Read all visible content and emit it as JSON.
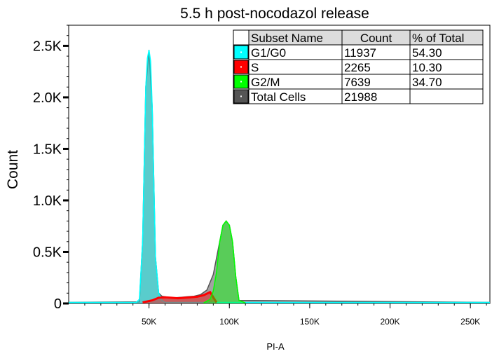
{
  "chart_data": {
    "type": "area",
    "title": "5.5 h post-nocodazol release",
    "xlabel": "PI-A",
    "ylabel": "Count",
    "xlim": [
      0,
      262144
    ],
    "ylim": [
      0,
      2700
    ],
    "x_ticks": [
      {
        "value": 50000,
        "label": "50K"
      },
      {
        "value": 100000,
        "label": "100K"
      },
      {
        "value": 150000,
        "label": "150K"
      },
      {
        "value": 200000,
        "label": "200K"
      },
      {
        "value": 250000,
        "label": "250K"
      }
    ],
    "y_ticks": [
      {
        "value": 0,
        "label": "0"
      },
      {
        "value": 500,
        "label": "0.5K"
      },
      {
        "value": 1000,
        "label": "1.0K"
      },
      {
        "value": 1500,
        "label": "1.5K"
      },
      {
        "value": 2000,
        "label": "2.0K"
      },
      {
        "value": 2500,
        "label": "2.5K"
      }
    ],
    "x_minor_step": 10000,
    "y_minor_step": 100,
    "grid": false,
    "series": [
      {
        "name": "Total Cells",
        "color": "#555555",
        "x": [
          0,
          44000,
          46000,
          48000,
          50000,
          52000,
          54000,
          56000,
          58000,
          62000,
          66000,
          70000,
          74000,
          78000,
          82000,
          86000,
          90000,
          94000,
          96000,
          98000,
          100000,
          102000,
          104000,
          106000,
          262144
        ],
        "y": [
          10,
          15,
          600,
          2100,
          2460,
          1900,
          450,
          100,
          70,
          60,
          55,
          60,
          65,
          70,
          85,
          130,
          280,
          600,
          760,
          800,
          760,
          600,
          260,
          30,
          10
        ]
      },
      {
        "name": "G1/G0",
        "color": "#00ffff",
        "x": [
          0,
          42000,
          44000,
          46000,
          48000,
          49000,
          50000,
          51000,
          52000,
          54000,
          56000,
          58000,
          60000,
          262144
        ],
        "y": [
          10,
          10,
          40,
          600,
          2100,
          2380,
          2460,
          2350,
          1900,
          450,
          100,
          30,
          10,
          10
        ]
      },
      {
        "name": "S",
        "color": "#ff0000",
        "x": [
          46000,
          52000,
          56000,
          60000,
          64000,
          68000,
          72000,
          76000,
          80000,
          84000,
          88000,
          90000,
          92000
        ],
        "y": [
          10,
          30,
          55,
          60,
          55,
          50,
          55,
          60,
          65,
          80,
          110,
          60,
          10
        ]
      },
      {
        "name": "G2/M",
        "color": "#00ff00",
        "x": [
          84000,
          88000,
          90000,
          92000,
          94000,
          96000,
          98000,
          100000,
          102000,
          104000,
          106000,
          110000
        ],
        "y": [
          5,
          40,
          120,
          300,
          600,
          760,
          800,
          760,
          600,
          260,
          30,
          5
        ]
      }
    ],
    "legend_table": {
      "placement": "top-right",
      "headers": [
        "Subset Name",
        "Count",
        "% of Total"
      ],
      "rows": [
        {
          "name": "G1/G0",
          "count": "11937",
          "percent": "54.30",
          "color": "#00ffff"
        },
        {
          "name": "S",
          "count": "2265",
          "percent": "10.30",
          "color": "#ff0000"
        },
        {
          "name": "G2/M",
          "count": "7639",
          "percent": "34.70",
          "color": "#00ff00"
        },
        {
          "name": "Total Cells",
          "count": "21988",
          "percent": "",
          "color": "#555555"
        }
      ]
    }
  }
}
